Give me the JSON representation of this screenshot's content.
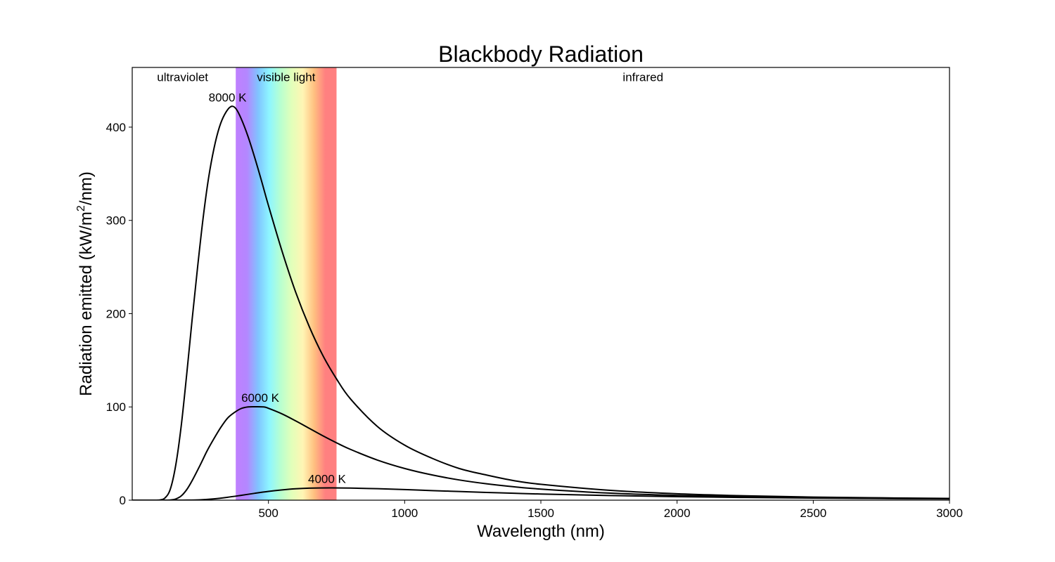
{
  "chart_data": {
    "type": "line",
    "title": "Blackbody Radiation",
    "xlabel": "Wavelength (nm)",
    "ylabel_prefix": "Radiation emitted (kW/m",
    "ylabel_sup": "2",
    "ylabel_suffix": "/nm)",
    "xlim": [
      0,
      3000
    ],
    "ylim": [
      0,
      464
    ],
    "xticks": [
      500,
      1000,
      1500,
      2000,
      2500,
      3000
    ],
    "xtick_labels": [
      "500",
      "1000",
      "1500",
      "2000",
      "2500",
      "3000"
    ],
    "yticks": [
      0,
      100,
      200,
      300,
      400
    ],
    "ytick_labels": [
      "0",
      "100",
      "200",
      "300",
      "400"
    ],
    "grid": false,
    "legend": "none",
    "visible_band": {
      "start": 380,
      "end": 750
    },
    "visible_gradient_colors": [
      "#bf80ff",
      "#b487ff",
      "#80c4ff",
      "#8ef6ff",
      "#b8ffd0",
      "#e2ffba",
      "#fff5b4",
      "#ffc080",
      "#ff8080",
      "#ff8080"
    ],
    "regions": [
      {
        "label": "ultraviolet",
        "x": 185,
        "y": 454
      },
      {
        "label": "visible light",
        "x": 565,
        "y": 454
      },
      {
        "label": "infrared",
        "x": 1875,
        "y": 454
      }
    ],
    "series": [
      {
        "temperature": 8000,
        "label": "8000 K",
        "label_pos": {
          "x": 350,
          "y": 432
        },
        "x": [
          0,
          40,
          60,
          80,
          100,
          120,
          140,
          160,
          180,
          200,
          220,
          240,
          260,
          280,
          300,
          320,
          340,
          362,
          380,
          400,
          425,
          450,
          475,
          500,
          550,
          600,
          650,
          700,
          750,
          800,
          900,
          1000,
          1100,
          1200,
          1300,
          1400,
          1500,
          1750,
          2000,
          2250,
          2500,
          2750,
          3000
        ],
        "y": [
          0,
          0,
          0,
          0,
          0.2,
          2.3,
          12,
          38,
          80,
          135,
          194,
          250,
          302,
          345,
          377,
          400,
          414,
          422,
          420,
          409,
          390,
          367,
          342,
          316,
          267,
          223,
          186,
          155,
          130,
          109,
          79,
          59,
          45,
          34,
          27,
          21,
          17,
          10.6,
          6.9,
          4.7,
          3.3,
          2.5,
          1.9
        ]
      },
      {
        "temperature": 6000,
        "label": "6000 K",
        "label_pos": {
          "x": 470,
          "y": 110
        },
        "x": [
          0,
          80,
          100,
          120,
          140,
          160,
          180,
          200,
          220,
          250,
          275,
          300,
          325,
          350,
          375,
          400,
          425,
          450,
          483,
          500,
          550,
          600,
          650,
          700,
          750,
          800,
          900,
          1000,
          1100,
          1200,
          1300,
          1400,
          1500,
          1750,
          2000,
          2250,
          2500,
          2750,
          3000
        ],
        "y": [
          0,
          0,
          0,
          0.02,
          0.23,
          1.3,
          4.6,
          11.3,
          21,
          38,
          53,
          66,
          78,
          88,
          94,
          98.3,
          100,
          100.2,
          100,
          98.5,
          92.5,
          85,
          77,
          69,
          61.5,
          54.6,
          43,
          34,
          27.1,
          21.7,
          17.6,
          14.4,
          11.9,
          7.6,
          5.1,
          3.6,
          2.6,
          1.9,
          1.5
        ]
      },
      {
        "temperature": 4000,
        "label": "4000 K",
        "label_pos": {
          "x": 715,
          "y": 23
        },
        "x": [
          0,
          150,
          200,
          250,
          300,
          350,
          400,
          450,
          500,
          550,
          600,
          650,
          725,
          800,
          900,
          1000,
          1100,
          1200,
          1300,
          1400,
          1500,
          1750,
          2000,
          2250,
          2500,
          2750,
          3000
        ],
        "y": [
          0,
          0,
          0.06,
          0.4,
          1.4,
          3.1,
          5.2,
          7.4,
          9.4,
          11,
          12.2,
          12.9,
          13.2,
          13.0,
          12.3,
          11.4,
          10.3,
          9.3,
          8.3,
          7.4,
          6.6,
          5.0,
          3.8,
          2.9,
          2.3,
          1.8,
          1.4
        ]
      }
    ]
  }
}
